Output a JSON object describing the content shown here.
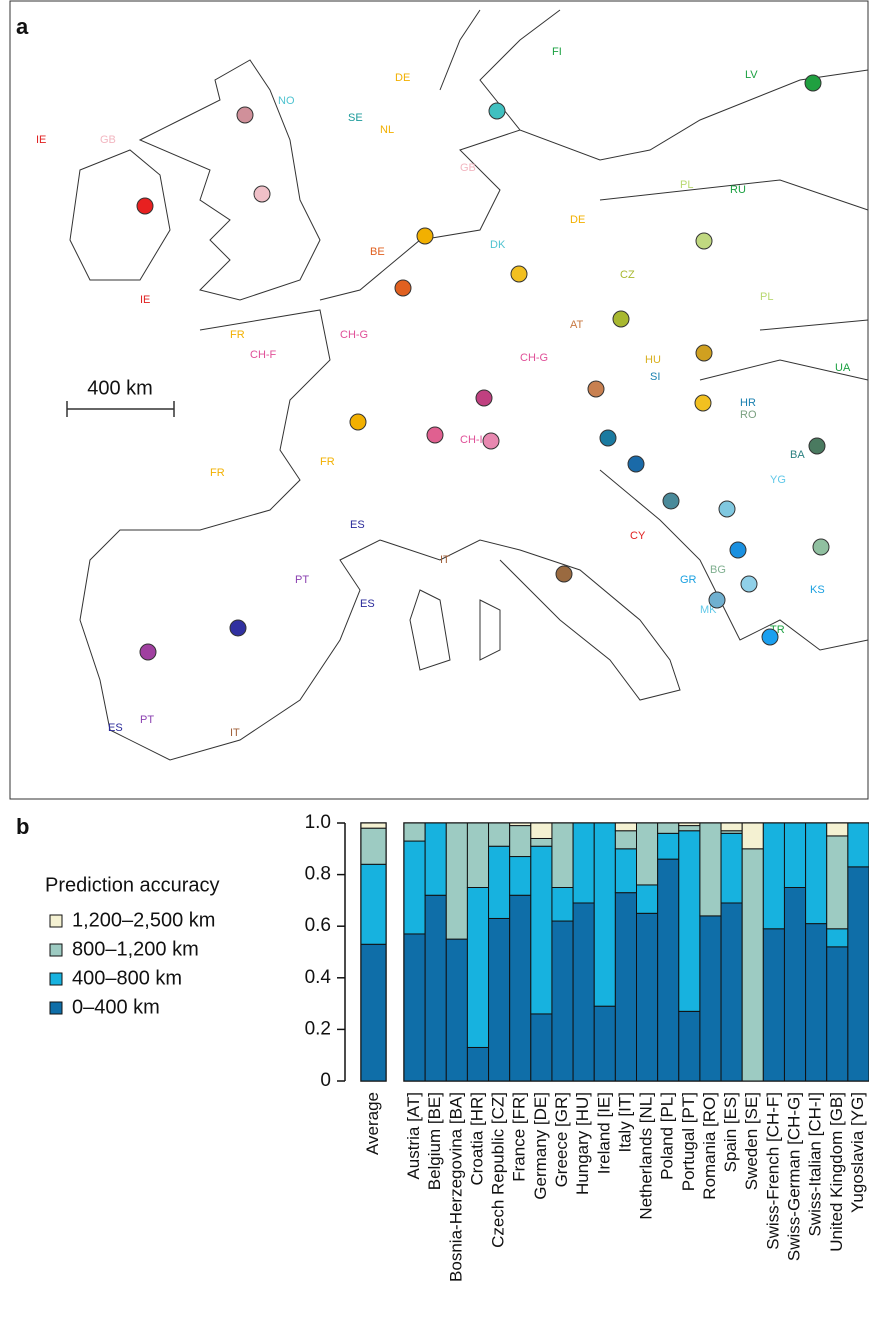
{
  "panel_a": {
    "label": "a",
    "scale_label": "400 km",
    "map_labels": [
      "IE",
      "GB",
      "NO",
      "SE",
      "FI",
      "LV",
      "DE",
      "NL",
      "DK",
      "BE",
      "FR",
      "CH-F",
      "CH-G",
      "CH-I",
      "AT",
      "CZ",
      "PL",
      "RU",
      "HU",
      "HR",
      "SI",
      "UA",
      "BA",
      "RO",
      "YG",
      "BG",
      "MK",
      "GR",
      "CY",
      "KS",
      "TR",
      "IT",
      "ES",
      "PT",
      "IE",
      "GB",
      "FR",
      "ES",
      "PT",
      "IT",
      "DE",
      "PL",
      "CH-G",
      "FR",
      "ES"
    ]
  },
  "chart_data": {
    "type": "stacked_bar",
    "panel_label": "b",
    "legend_title": "Prediction accuracy",
    "categories": [
      "Average",
      "Austria [AT]",
      "Belgium [BE]",
      "Bosnia-Herzegovina [BA]",
      "Croatia [HR]",
      "Czech Republic [CZ]",
      "France [FR]",
      "Germany [DE]",
      "Greece [GR]",
      "Hungary [HU]",
      "Ireland [IE]",
      "Italy [IT]",
      "Netherlands [NL]",
      "Poland [PL]",
      "Portugal [PT]",
      "Romania [RO]",
      "Spain [ES]",
      "Sweden [SE]",
      "Swiss-French [CH-F]",
      "Swiss-German [CH-G]",
      "Swiss-Italian [CH-I]",
      "United Kingdom [GB]",
      "Yugoslavia [YG]"
    ],
    "series": [
      {
        "name": "0–400 km",
        "color": "#0f6ea8",
        "values": [
          0.53,
          0.57,
          0.72,
          0.55,
          0.13,
          0.63,
          0.72,
          0.26,
          0.62,
          0.69,
          0.29,
          0.73,
          0.65,
          0.86,
          0.27,
          0.64,
          0.69,
          0,
          0.59,
          0.75,
          0.61,
          0.52,
          0.83
        ]
      },
      {
        "name": "400–800 km",
        "color": "#17b2df",
        "values": [
          0.31,
          0.36,
          0.28,
          0,
          0.62,
          0.28,
          0.15,
          0.65,
          0.13,
          0.31,
          0.71,
          0.17,
          0.11,
          0.1,
          0.7,
          0,
          0.27,
          0,
          0.41,
          0.25,
          0.39,
          0.07,
          0.17
        ]
      },
      {
        "name": "800–1,200 km",
        "color": "#9dcbc2",
        "values": [
          0.14,
          0.07,
          0,
          0.45,
          0.25,
          0.09,
          0.12,
          0.03,
          0.25,
          0,
          0,
          0.07,
          0.24,
          0.04,
          0.02,
          0.36,
          0.01,
          0.9,
          0,
          0,
          0,
          0.36,
          0
        ]
      },
      {
        "name": "1,200–2,500 km",
        "color": "#f4f1d2",
        "values": [
          0.02,
          0,
          0,
          0,
          0,
          0,
          0.01,
          0.06,
          0,
          0,
          0,
          0.03,
          0,
          0,
          0.01,
          0,
          0.03,
          0.1,
          0,
          0,
          0,
          0.05,
          0
        ]
      }
    ],
    "ylim": [
      0,
      1
    ],
    "yticks": [
      0,
      0.2,
      0.4,
      0.6,
      0.8,
      {
        "value": 1,
        "label": "1.0"
      }
    ]
  }
}
